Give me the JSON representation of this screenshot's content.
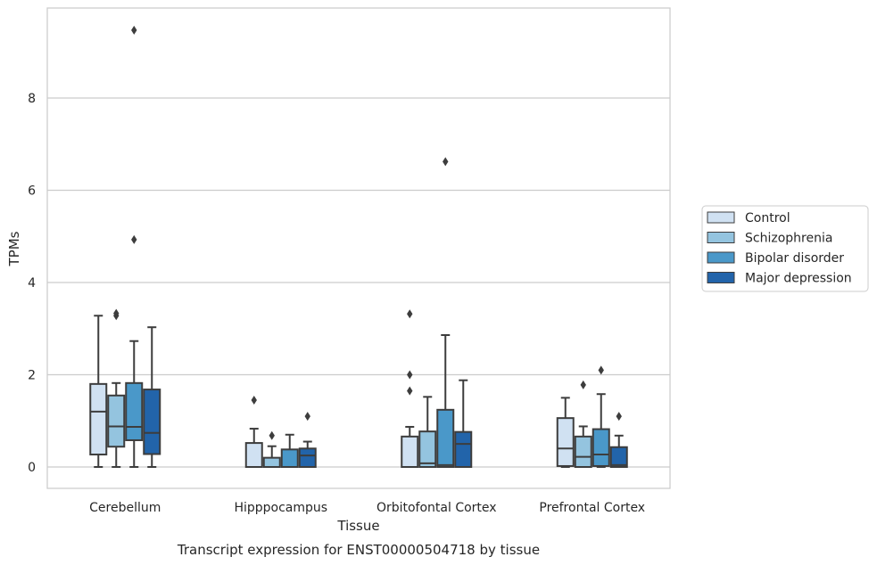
{
  "chart_data": {
    "type": "boxplot",
    "title": "Transcript expression for ENST00000504718 by tissue",
    "xlabel": "Tissue",
    "ylabel": "TPMs",
    "ylim": [
      -0.45,
      10
    ],
    "yticks": [
      0,
      2,
      4,
      6,
      8
    ],
    "grid": "horizontal",
    "legend_position": "right",
    "categories": [
      "Cerebellum",
      "Hipppocampus",
      "Orbitofontal Cortex",
      "Prefrontal Cortex"
    ],
    "series": [
      {
        "name": "Control",
        "color": "#d0e1f2",
        "boxes": [
          {
            "min": 0.0,
            "q1": 0.27,
            "median": 1.2,
            "q3": 1.8,
            "max": 3.28,
            "outliers": []
          },
          {
            "min": 0.0,
            "q1": 0.0,
            "median": 0.0,
            "q3": 0.52,
            "max": 0.83,
            "outliers": [
              1.45
            ]
          },
          {
            "min": 0.0,
            "q1": 0.0,
            "median": 0.0,
            "q3": 0.66,
            "max": 0.87,
            "outliers": [
              1.65,
              2.0,
              3.32
            ]
          },
          {
            "min": 0.0,
            "q1": 0.02,
            "median": 0.4,
            "q3": 1.06,
            "max": 1.5,
            "outliers": []
          }
        ]
      },
      {
        "name": "Schizophrenia",
        "color": "#94c4df",
        "boxes": [
          {
            "min": 0.0,
            "q1": 0.44,
            "median": 0.88,
            "q3": 1.55,
            "max": 1.82,
            "outliers": [
              3.28,
              3.33
            ]
          },
          {
            "min": 0.0,
            "q1": 0.0,
            "median": 0.0,
            "q3": 0.2,
            "max": 0.45,
            "outliers": [
              0.68
            ]
          },
          {
            "min": 0.0,
            "q1": 0.0,
            "median": 0.08,
            "q3": 0.77,
            "max": 1.52,
            "outliers": []
          },
          {
            "min": 0.0,
            "q1": 0.0,
            "median": 0.22,
            "q3": 0.66,
            "max": 0.88,
            "outliers": [
              1.78
            ]
          }
        ]
      },
      {
        "name": "Bipolar disorder",
        "color": "#4a98c9",
        "boxes": [
          {
            "min": 0.0,
            "q1": 0.58,
            "median": 0.87,
            "q3": 1.82,
            "max": 2.73,
            "outliers": [
              4.93,
              9.47
            ]
          },
          {
            "min": 0.0,
            "q1": 0.0,
            "median": 0.0,
            "q3": 0.38,
            "max": 0.7,
            "outliers": []
          },
          {
            "min": 0.0,
            "q1": 0.0,
            "median": 0.04,
            "q3": 1.24,
            "max": 2.86,
            "outliers": [
              6.62
            ]
          },
          {
            "min": 0.0,
            "q1": 0.02,
            "median": 0.27,
            "q3": 0.82,
            "max": 1.58,
            "outliers": [
              2.1
            ]
          }
        ]
      },
      {
        "name": "Major depression",
        "color": "#2264aa",
        "boxes": [
          {
            "min": 0.0,
            "q1": 0.28,
            "median": 0.74,
            "q3": 1.68,
            "max": 3.03,
            "outliers": []
          },
          {
            "min": 0.0,
            "q1": 0.0,
            "median": 0.25,
            "q3": 0.4,
            "max": 0.55,
            "outliers": [
              1.1
            ]
          },
          {
            "min": 0.0,
            "q1": 0.0,
            "median": 0.5,
            "q3": 0.76,
            "max": 1.88,
            "outliers": []
          },
          {
            "min": 0.0,
            "q1": 0.0,
            "median": 0.04,
            "q3": 0.43,
            "max": 0.68,
            "outliers": [
              1.1
            ]
          }
        ]
      }
    ]
  }
}
